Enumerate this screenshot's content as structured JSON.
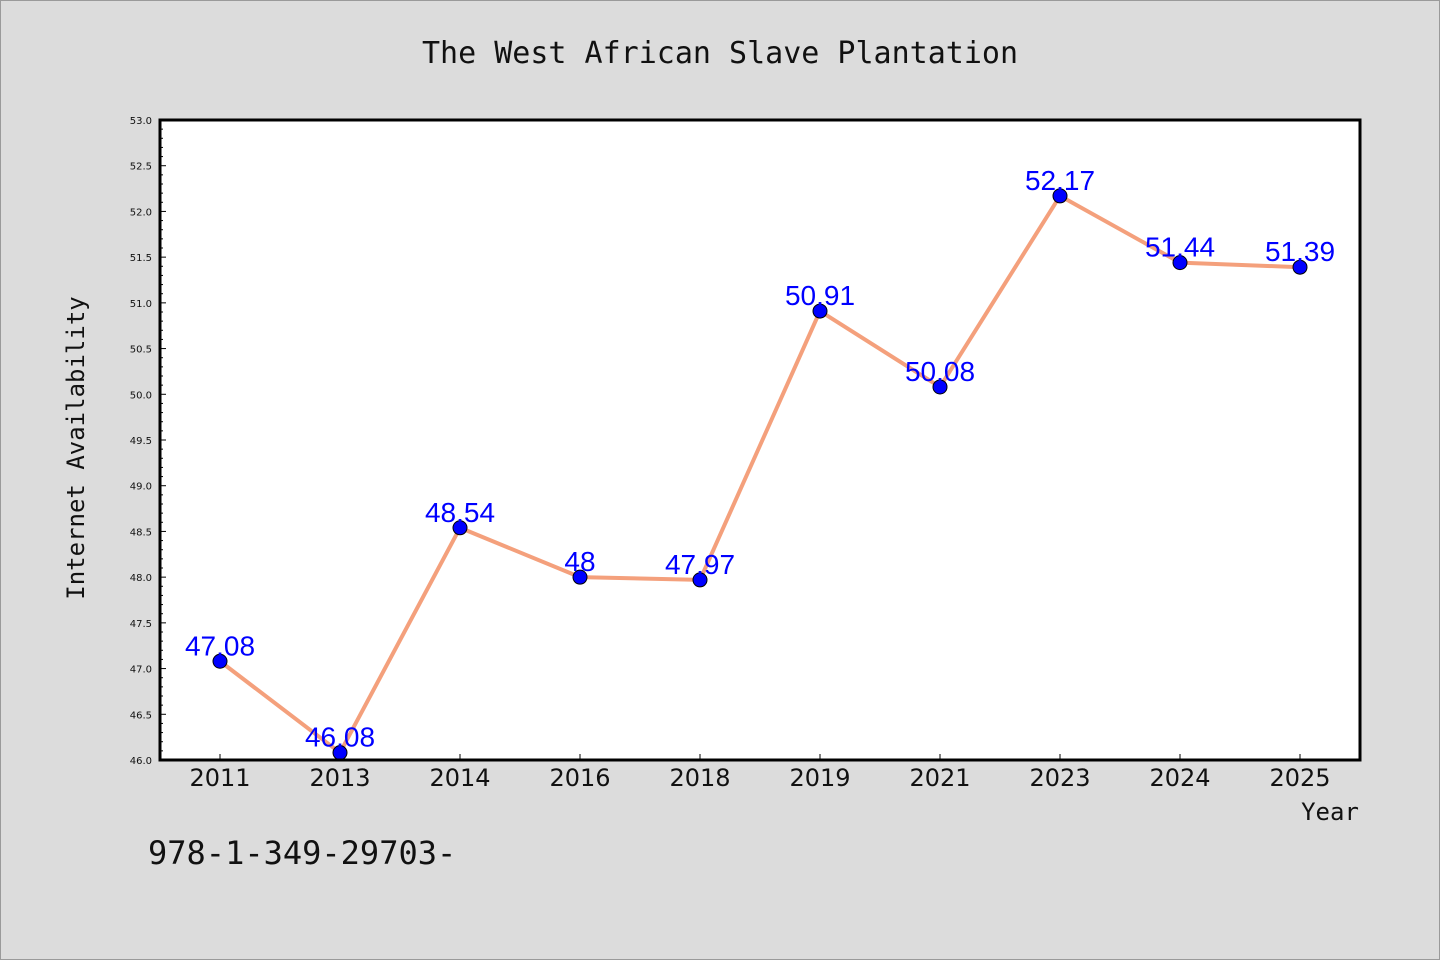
{
  "chart_data": {
    "type": "line",
    "title": "The West African Slave Plantation",
    "xlabel": "Year",
    "ylabel": "Internet Availability",
    "categories": [
      "2011",
      "2013",
      "2014",
      "2016",
      "2018",
      "2019",
      "2021",
      "2023",
      "2024",
      "2025"
    ],
    "series": [
      {
        "values": [
          47.08,
          46.08,
          48.54,
          48,
          47.97,
          50.91,
          50.08,
          52.17,
          51.44,
          51.39
        ]
      }
    ],
    "data_labels": [
      "47.08",
      "46.08",
      "48.54",
      "48",
      "47.97",
      "50.91",
      "50.08",
      "52.17",
      "51.44",
      "51.39"
    ],
    "ylim": [
      46.0,
      53.0
    ],
    "yticks": [
      "46.0",
      "46.5",
      "47.0",
      "47.5",
      "48.0",
      "48.5",
      "49.0",
      "49.5",
      "50.0",
      "50.5",
      "51.0",
      "51.5",
      "52.0",
      "52.5",
      "53.0"
    ],
    "grid": false,
    "line_color": "#f4a07c",
    "marker_color": "#0000ff",
    "label_color": "#0000ff",
    "background_color": "#dcdcdc",
    "plot_background": "#ffffff"
  },
  "footer": {
    "text": "978-1-349-29703-"
  }
}
